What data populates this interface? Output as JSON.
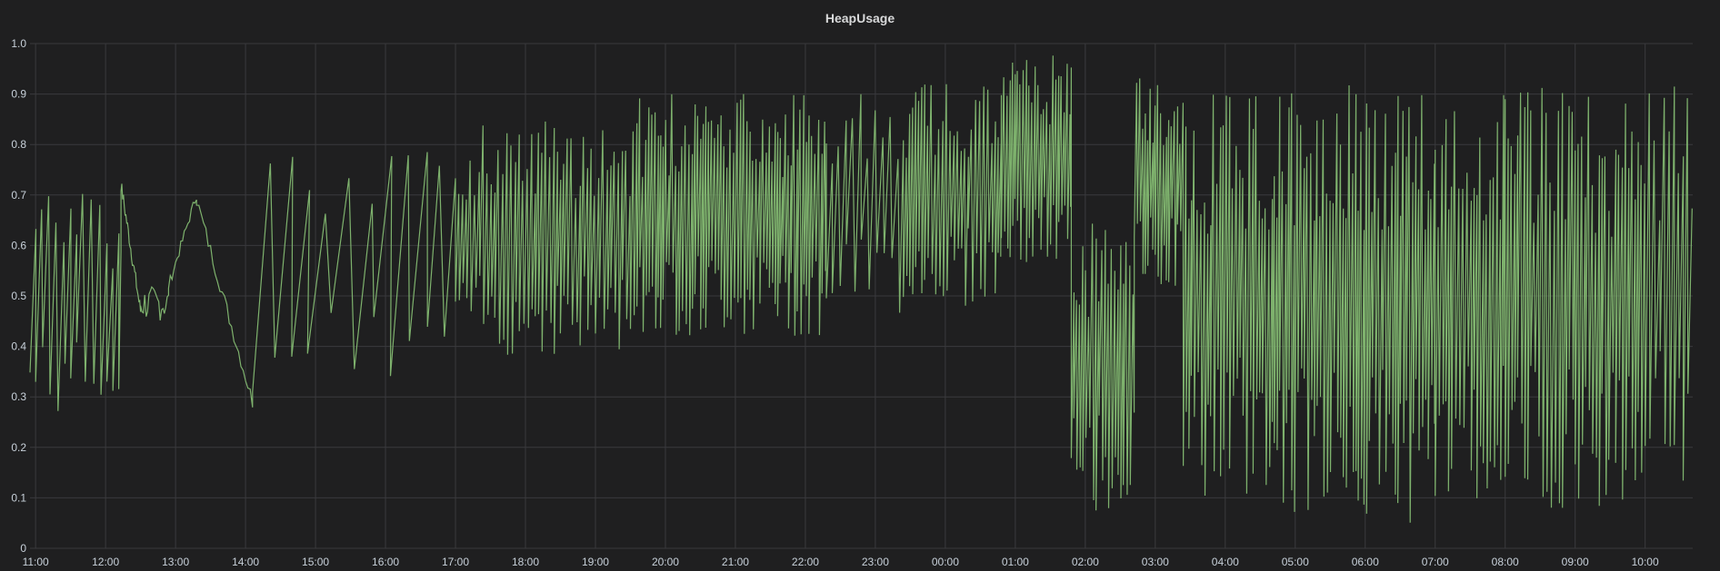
{
  "panel": {
    "title": "HeapUsage"
  },
  "colors": {
    "background": "#1f1f20",
    "grid": "#3a3a3d",
    "text": "#c7d0d9",
    "series": "#7eb26d"
  },
  "chart_data": {
    "type": "line",
    "title": "HeapUsage",
    "xlabel": "",
    "ylabel": "",
    "ylim": [
      0,
      1.0
    ],
    "xlim": [
      10.92,
      34.68
    ],
    "yticks": [
      "0",
      "0.1",
      "0.2",
      "0.3",
      "0.4",
      "0.5",
      "0.6",
      "0.7",
      "0.8",
      "0.9",
      "1.0"
    ],
    "xticks": [
      {
        "t": 11,
        "label": "11:00"
      },
      {
        "t": 12,
        "label": "12:00"
      },
      {
        "t": 13,
        "label": "13:00"
      },
      {
        "t": 14,
        "label": "14:00"
      },
      {
        "t": 15,
        "label": "15:00"
      },
      {
        "t": 16,
        "label": "16:00"
      },
      {
        "t": 17,
        "label": "17:00"
      },
      {
        "t": 18,
        "label": "18:00"
      },
      {
        "t": 19,
        "label": "19:00"
      },
      {
        "t": 20,
        "label": "20:00"
      },
      {
        "t": 21,
        "label": "21:00"
      },
      {
        "t": 22,
        "label": "22:00"
      },
      {
        "t": 23,
        "label": "23:00"
      },
      {
        "t": 24,
        "label": "00:00"
      },
      {
        "t": 25,
        "label": "01:00"
      },
      {
        "t": 26,
        "label": "02:00"
      },
      {
        "t": 27,
        "label": "03:00"
      },
      {
        "t": 28,
        "label": "04:00"
      },
      {
        "t": 29,
        "label": "05:00"
      },
      {
        "t": 30,
        "label": "06:00"
      },
      {
        "t": 31,
        "label": "07:00"
      },
      {
        "t": 32,
        "label": "08:00"
      },
      {
        "t": 33,
        "label": "09:00"
      },
      {
        "t": 34,
        "label": "10:00"
      }
    ],
    "grid": true,
    "legend": "none",
    "series": [
      {
        "name": "",
        "color": "#7eb26d",
        "segments": [
          {
            "t0": 10.92,
            "t1": 12.22,
            "lo": 0.26,
            "hi": 0.71,
            "period": 0.1
          },
          {
            "t0": 12.22,
            "t1": 12.5,
            "lo": 0.47,
            "hi": 0.72,
            "shape": "decay"
          },
          {
            "t0": 12.5,
            "t1": 12.9,
            "lo": 0.45,
            "hi": 0.52,
            "shape": "wiggle"
          },
          {
            "t0": 12.9,
            "t1": 13.3,
            "lo": 0.52,
            "hi": 0.7,
            "shape": "rise"
          },
          {
            "t0": 13.3,
            "t1": 14.1,
            "lo": 0.29,
            "hi": 0.69,
            "shape": "decay"
          },
          {
            "t0": 14.1,
            "t1": 16.6,
            "lo": 0.31,
            "hi": 0.79,
            "period": 0.3
          },
          {
            "t0": 16.6,
            "t1": 17.0,
            "lo": 0.35,
            "hi": 0.82,
            "period": 0.2
          },
          {
            "t0": 17.0,
            "t1": 19.5,
            "lo": 0.38,
            "hi": 0.85,
            "period": 0.055
          },
          {
            "t0": 19.5,
            "t1": 22.3,
            "lo": 0.42,
            "hi": 0.9,
            "period": 0.045
          },
          {
            "t0": 22.3,
            "t1": 23.4,
            "lo": 0.46,
            "hi": 0.9,
            "period": 0.1
          },
          {
            "t0": 23.4,
            "t1": 24.8,
            "lo": 0.48,
            "hi": 0.93,
            "period": 0.05
          },
          {
            "t0": 24.8,
            "t1": 25.8,
            "lo": 0.55,
            "hi": 0.98,
            "period": 0.04
          },
          {
            "t0": 25.8,
            "t1": 26.7,
            "lo": 0.07,
            "hi": 0.65,
            "period": 0.045
          },
          {
            "t0": 26.7,
            "t1": 27.4,
            "lo": 0.51,
            "hi": 0.94,
            "period": 0.04
          },
          {
            "t0": 27.4,
            "t1": 28.7,
            "lo": 0.1,
            "hi": 0.9,
            "period": 0.045
          },
          {
            "t0": 28.7,
            "t1": 29.9,
            "lo": 0.07,
            "hi": 0.92,
            "period": 0.045
          },
          {
            "t0": 29.9,
            "t1": 31.0,
            "lo": 0.05,
            "hi": 0.93,
            "period": 0.045
          },
          {
            "t0": 31.0,
            "t1": 32.0,
            "lo": 0.08,
            "hi": 0.9,
            "period": 0.05
          },
          {
            "t0": 32.0,
            "t1": 33.0,
            "lo": 0.08,
            "hi": 0.92,
            "period": 0.05
          },
          {
            "t0": 33.0,
            "t1": 34.0,
            "lo": 0.08,
            "hi": 0.9,
            "period": 0.05
          },
          {
            "t0": 34.0,
            "t1": 34.68,
            "lo": 0.1,
            "hi": 0.94,
            "period": 0.07
          }
        ]
      }
    ]
  }
}
